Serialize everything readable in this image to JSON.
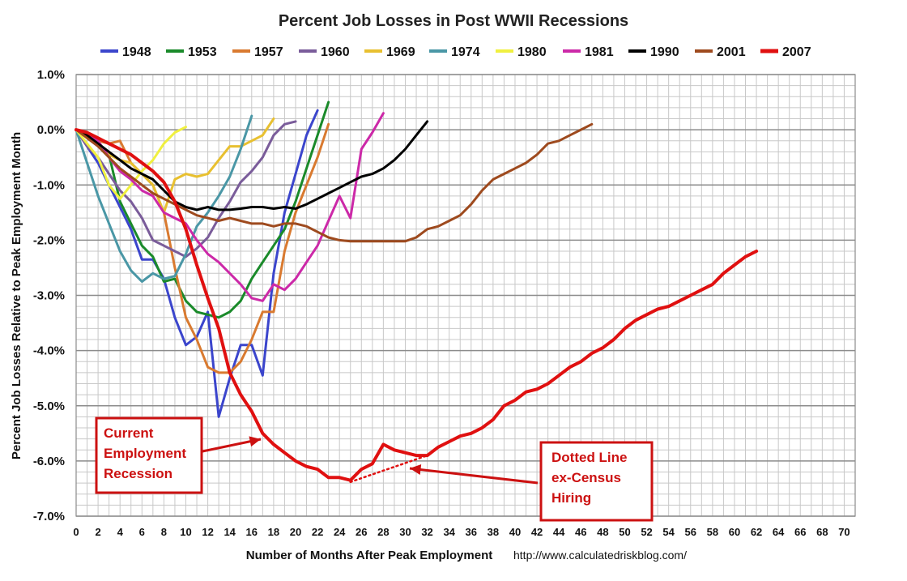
{
  "chart_data": {
    "type": "line",
    "title": "Percent Job Losses in Post WWII Recessions",
    "xlabel": "Number of Months After Peak Employment",
    "ylabel": "Percent Job Losses Relative to Peak Employment Month",
    "source": "http://www.calculatedriskblog.com/",
    "xlim": [
      0,
      71
    ],
    "ylim": [
      -7,
      1
    ],
    "x_ticks": [
      0,
      2,
      4,
      6,
      8,
      10,
      12,
      14,
      16,
      18,
      20,
      22,
      24,
      26,
      28,
      30,
      32,
      34,
      36,
      38,
      40,
      42,
      44,
      46,
      48,
      50,
      52,
      54,
      56,
      58,
      60,
      62,
      64,
      66,
      68,
      70
    ],
    "y_ticks": [
      1,
      0,
      -1,
      -2,
      -3,
      -4,
      -5,
      -6,
      -7
    ],
    "y_tick_labels": [
      "1.0%",
      "0.0%",
      "-1.0%",
      "-2.0%",
      "-3.0%",
      "-4.0%",
      "-5.0%",
      "-6.0%",
      "-7.0%"
    ],
    "grid": true,
    "legend_position": "top",
    "series": [
      {
        "name": "1948",
        "color": "#3b45cc",
        "width": 3,
        "y": [
          0,
          -0.3,
          -0.6,
          -1.0,
          -1.4,
          -1.8,
          -2.35,
          -2.35,
          -2.7,
          -3.4,
          -3.9,
          -3.75,
          -3.3,
          -5.2,
          -4.5,
          -3.9,
          -3.9,
          -4.45,
          -2.6,
          -1.5,
          -0.8,
          -0.1,
          0.35
        ]
      },
      {
        "name": "1953",
        "color": "#1a8a2a",
        "width": 3,
        "y": [
          0,
          -0.1,
          -0.25,
          -0.45,
          -1.3,
          -1.7,
          -2.1,
          -2.3,
          -2.75,
          -2.7,
          -3.1,
          -3.3,
          -3.35,
          -3.4,
          -3.3,
          -3.1,
          -2.7,
          -2.4,
          -2.1,
          -1.8,
          -1.3,
          -0.7,
          -0.1,
          0.5
        ]
      },
      {
        "name": "1957",
        "color": "#d97a30",
        "width": 3,
        "y": [
          0,
          -0.1,
          -0.2,
          -0.25,
          -0.2,
          -0.6,
          -0.8,
          -1.0,
          -1.5,
          -2.5,
          -3.4,
          -3.8,
          -4.3,
          -4.4,
          -4.4,
          -4.2,
          -3.8,
          -3.3,
          -3.3,
          -2.2,
          -1.5,
          -1.0,
          -0.5,
          0.1
        ]
      },
      {
        "name": "1960",
        "color": "#7a5c9a",
        "width": 3,
        "y": [
          0,
          -0.3,
          -0.5,
          -0.8,
          -1.1,
          -1.3,
          -1.6,
          -2.0,
          -2.1,
          -2.2,
          -2.3,
          -2.15,
          -1.95,
          -1.6,
          -1.3,
          -0.95,
          -0.75,
          -0.5,
          -0.1,
          0.1,
          0.15
        ]
      },
      {
        "name": "1969",
        "color": "#e8c030",
        "width": 3,
        "y": [
          0,
          -0.1,
          -0.3,
          -0.45,
          -0.55,
          -0.6,
          -0.8,
          -1.0,
          -1.5,
          -0.9,
          -0.8,
          -0.85,
          -0.8,
          -0.55,
          -0.3,
          -0.3,
          -0.2,
          -0.1,
          0.2
        ]
      },
      {
        "name": "1974",
        "color": "#4a97a6",
        "width": 3,
        "y": [
          0,
          -0.6,
          -1.2,
          -1.7,
          -2.2,
          -2.55,
          -2.75,
          -2.6,
          -2.7,
          -2.65,
          -2.25,
          -1.75,
          -1.5,
          -1.2,
          -0.85,
          -0.35,
          0.25
        ]
      },
      {
        "name": "1980",
        "color": "#f0f040",
        "width": 3,
        "y": [
          0,
          -0.25,
          -0.5,
          -1.0,
          -1.25,
          -1.0,
          -0.75,
          -0.55,
          -0.25,
          -0.05,
          0.05
        ]
      },
      {
        "name": "1981",
        "color": "#cc29a8",
        "width": 3,
        "y": [
          0,
          -0.1,
          -0.2,
          -0.5,
          -0.75,
          -0.9,
          -1.1,
          -1.2,
          -1.5,
          -1.6,
          -1.7,
          -2.0,
          -2.25,
          -2.4,
          -2.6,
          -2.8,
          -3.05,
          -3.1,
          -2.8,
          -2.9,
          -2.7,
          -2.4,
          -2.1,
          -1.65,
          -1.2,
          -1.6,
          -0.35,
          -0.05,
          0.3
        ]
      },
      {
        "name": "1990",
        "color": "#000000",
        "width": 3,
        "y": [
          0,
          -0.1,
          -0.25,
          -0.4,
          -0.55,
          -0.7,
          -0.8,
          -0.9,
          -1.1,
          -1.3,
          -1.4,
          -1.45,
          -1.4,
          -1.45,
          -1.45,
          -1.43,
          -1.4,
          -1.4,
          -1.43,
          -1.4,
          -1.43,
          -1.35,
          -1.25,
          -1.15,
          -1.05,
          -0.95,
          -0.85,
          -0.8,
          -0.7,
          -0.55,
          -0.35,
          -0.1,
          0.15
        ]
      },
      {
        "name": "2001",
        "color": "#9e4a1e",
        "width": 3,
        "y": [
          0,
          -0.15,
          -0.3,
          -0.5,
          -0.7,
          -0.85,
          -1.0,
          -1.15,
          -1.25,
          -1.35,
          -1.45,
          -1.55,
          -1.6,
          -1.65,
          -1.6,
          -1.65,
          -1.7,
          -1.7,
          -1.75,
          -1.7,
          -1.7,
          -1.75,
          -1.85,
          -1.95,
          -2.0,
          -2.02,
          -2.02,
          -2.02,
          -2.02,
          -2.02,
          -2.02,
          -1.95,
          -1.8,
          -1.75,
          -1.65,
          -1.55,
          -1.35,
          -1.1,
          -0.9,
          -0.8,
          -0.7,
          -0.6,
          -0.45,
          -0.25,
          -0.2,
          -0.1,
          0.0,
          0.1
        ]
      },
      {
        "name": "2007",
        "color": "#e01010",
        "width": 4,
        "y": [
          0,
          -0.05,
          -0.15,
          -0.25,
          -0.35,
          -0.45,
          -0.6,
          -0.75,
          -0.95,
          -1.3,
          -1.8,
          -2.45,
          -3.05,
          -3.6,
          -4.4,
          -4.8,
          -5.1,
          -5.5,
          -5.7,
          -5.85,
          -6.0,
          -6.1,
          -6.15,
          -6.3,
          -6.3,
          -6.35,
          -6.15,
          -6.05,
          -5.7,
          -5.8,
          -5.85,
          -5.9,
          -5.9,
          -5.75,
          -5.65,
          -5.55,
          -5.5,
          -5.4,
          -5.25,
          -5.0,
          -4.9,
          -4.75,
          -4.7,
          -4.6,
          -4.45,
          -4.3,
          -4.2,
          -4.05,
          -3.95,
          -3.8,
          -3.6,
          -3.45,
          -3.35,
          -3.25,
          -3.2,
          -3.1,
          -3.0,
          -2.9,
          -2.8,
          -2.6,
          -2.45,
          -2.3,
          -2.2
        ]
      }
    ],
    "census_dotted": {
      "x": [
        25,
        32
      ],
      "y": [
        -6.38,
        -5.9
      ]
    },
    "annotations": [
      {
        "id": "current",
        "lines": [
          "Current",
          "Employment",
          "Recession"
        ]
      },
      {
        "id": "dotted",
        "lines": [
          "Dotted  Line",
          "ex-Census",
          "Hiring"
        ]
      }
    ]
  }
}
